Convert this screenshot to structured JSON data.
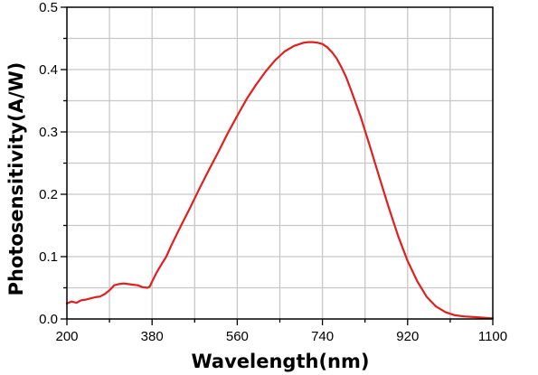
{
  "chart_data": {
    "type": "line",
    "title": "",
    "xlabel": "Wavelength(nm)",
    "ylabel": "Photosensitivity(A/W)",
    "xlim": [
      200,
      1100
    ],
    "ylim": [
      0,
      0.5
    ],
    "x_ticks": [
      "200",
      "380",
      "560",
      "740",
      "920",
      "1100"
    ],
    "y_ticks": [
      "0.0",
      "0.1",
      "0.2",
      "0.3",
      "0.4",
      "0.5"
    ],
    "grid": true,
    "line_color": "#e02020",
    "grid_color": "#c8c8c8",
    "series": [
      {
        "x": [
          200,
          210,
          220,
          230,
          240,
          250,
          260,
          270,
          280,
          290,
          300,
          310,
          320,
          330,
          340,
          350,
          360,
          370,
          375,
          380,
          390,
          400,
          410,
          420,
          440,
          460,
          480,
          500,
          520,
          540,
          560,
          580,
          600,
          620,
          640,
          660,
          680,
          700,
          710,
          720,
          730,
          740,
          750,
          760,
          770,
          780,
          790,
          800,
          820,
          840,
          860,
          880,
          900,
          920,
          940,
          960,
          980,
          1000,
          1020,
          1040,
          1060,
          1080,
          1100
        ],
        "y": [
          0.025,
          0.028,
          0.026,
          0.03,
          0.031,
          0.033,
          0.035,
          0.036,
          0.04,
          0.046,
          0.054,
          0.056,
          0.057,
          0.056,
          0.055,
          0.054,
          0.051,
          0.05,
          0.052,
          0.06,
          0.075,
          0.088,
          0.1,
          0.117,
          0.148,
          0.178,
          0.209,
          0.239,
          0.268,
          0.298,
          0.326,
          0.353,
          0.376,
          0.397,
          0.415,
          0.429,
          0.438,
          0.443,
          0.444,
          0.444,
          0.443,
          0.441,
          0.436,
          0.428,
          0.418,
          0.404,
          0.388,
          0.368,
          0.326,
          0.278,
          0.228,
          0.179,
          0.133,
          0.093,
          0.061,
          0.036,
          0.02,
          0.011,
          0.006,
          0.004,
          0.003,
          0.002,
          0.001
        ]
      }
    ]
  }
}
